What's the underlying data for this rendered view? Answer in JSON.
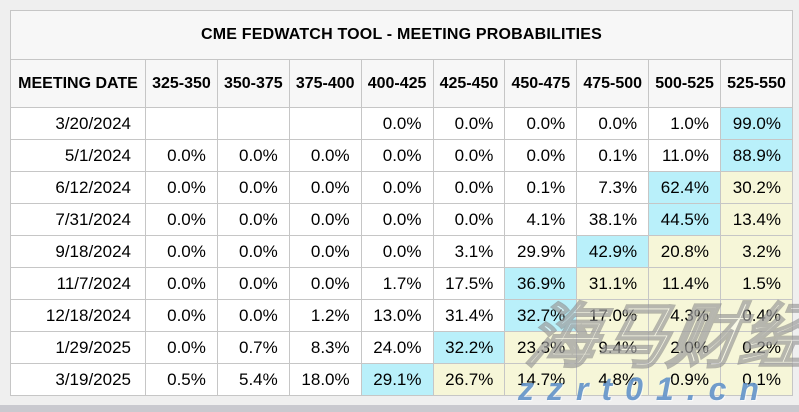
{
  "chart_data": {
    "type": "table",
    "title": "CME FEDWATCH TOOL - MEETING PROBABILITIES",
    "columns": [
      "MEETING DATE",
      "325-350",
      "350-375",
      "375-400",
      "400-425",
      "425-450",
      "450-475",
      "475-500",
      "500-525",
      "525-550"
    ],
    "rows": [
      {
        "meeting_date": "3/20/2024",
        "values": [
          "",
          "",
          "",
          "0.0%",
          "0.0%",
          "0.0%",
          "0.0%",
          "1.0%",
          "99.0%"
        ],
        "highlight": [
          "",
          "",
          "",
          "",
          "",
          "",
          "",
          "",
          "cyan"
        ]
      },
      {
        "meeting_date": "5/1/2024",
        "values": [
          "0.0%",
          "0.0%",
          "0.0%",
          "0.0%",
          "0.0%",
          "0.0%",
          "0.1%",
          "11.0%",
          "88.9%"
        ],
        "highlight": [
          "",
          "",
          "",
          "",
          "",
          "",
          "",
          "",
          "cyan"
        ]
      },
      {
        "meeting_date": "6/12/2024",
        "values": [
          "0.0%",
          "0.0%",
          "0.0%",
          "0.0%",
          "0.0%",
          "0.1%",
          "7.3%",
          "62.4%",
          "30.2%"
        ],
        "highlight": [
          "",
          "",
          "",
          "",
          "",
          "",
          "",
          "cyan",
          "yellow"
        ]
      },
      {
        "meeting_date": "7/31/2024",
        "values": [
          "0.0%",
          "0.0%",
          "0.0%",
          "0.0%",
          "0.0%",
          "4.1%",
          "38.1%",
          "44.5%",
          "13.4%"
        ],
        "highlight": [
          "",
          "",
          "",
          "",
          "",
          "",
          "",
          "cyan",
          "yellow"
        ]
      },
      {
        "meeting_date": "9/18/2024",
        "values": [
          "0.0%",
          "0.0%",
          "0.0%",
          "0.0%",
          "3.1%",
          "29.9%",
          "42.9%",
          "20.8%",
          "3.2%"
        ],
        "highlight": [
          "",
          "",
          "",
          "",
          "",
          "",
          "cyan",
          "yellow",
          "yellow"
        ]
      },
      {
        "meeting_date": "11/7/2024",
        "values": [
          "0.0%",
          "0.0%",
          "0.0%",
          "1.7%",
          "17.5%",
          "36.9%",
          "31.1%",
          "11.4%",
          "1.5%"
        ],
        "highlight": [
          "",
          "",
          "",
          "",
          "",
          "cyan",
          "yellow",
          "yellow",
          "yellow"
        ]
      },
      {
        "meeting_date": "12/18/2024",
        "values": [
          "0.0%",
          "0.0%",
          "1.2%",
          "13.0%",
          "31.4%",
          "32.7%",
          "17.0%",
          "4.3%",
          "0.4%"
        ],
        "highlight": [
          "",
          "",
          "",
          "",
          "",
          "cyan",
          "yellow",
          "yellow",
          "yellow"
        ]
      },
      {
        "meeting_date": "1/29/2025",
        "values": [
          "0.0%",
          "0.7%",
          "8.3%",
          "24.0%",
          "32.2%",
          "23.3%",
          "9.4%",
          "2.0%",
          "0.2%"
        ],
        "highlight": [
          "",
          "",
          "",
          "",
          "cyan",
          "yellow",
          "yellow",
          "yellow",
          "yellow"
        ]
      },
      {
        "meeting_date": "3/19/2025",
        "values": [
          "0.5%",
          "5.4%",
          "18.0%",
          "29.1%",
          "26.7%",
          "14.7%",
          "4.8%",
          "0.9%",
          "0.1%"
        ],
        "highlight": [
          "",
          "",
          "",
          "cyan",
          "yellow",
          "yellow",
          "yellow",
          "yellow",
          "yellow"
        ]
      }
    ],
    "layout": {
      "grid": "on",
      "header_row": true,
      "title_position": "top-center"
    }
  },
  "colors": {
    "page_bg": "#efefef",
    "panel_bg": "#f7f7f7",
    "row_bg": "#ffffff",
    "border": "#c6c6c6",
    "cyan": "#b9f0fa",
    "yellow": "#f6f6d8",
    "text": "#000000",
    "bottom_bar": "#c9c9cf",
    "watermark_blue": "rgba(88,140,197,0.85)"
  },
  "watermark": {
    "text_cn": "海马财经",
    "text_url": "zzrt01.cn"
  }
}
